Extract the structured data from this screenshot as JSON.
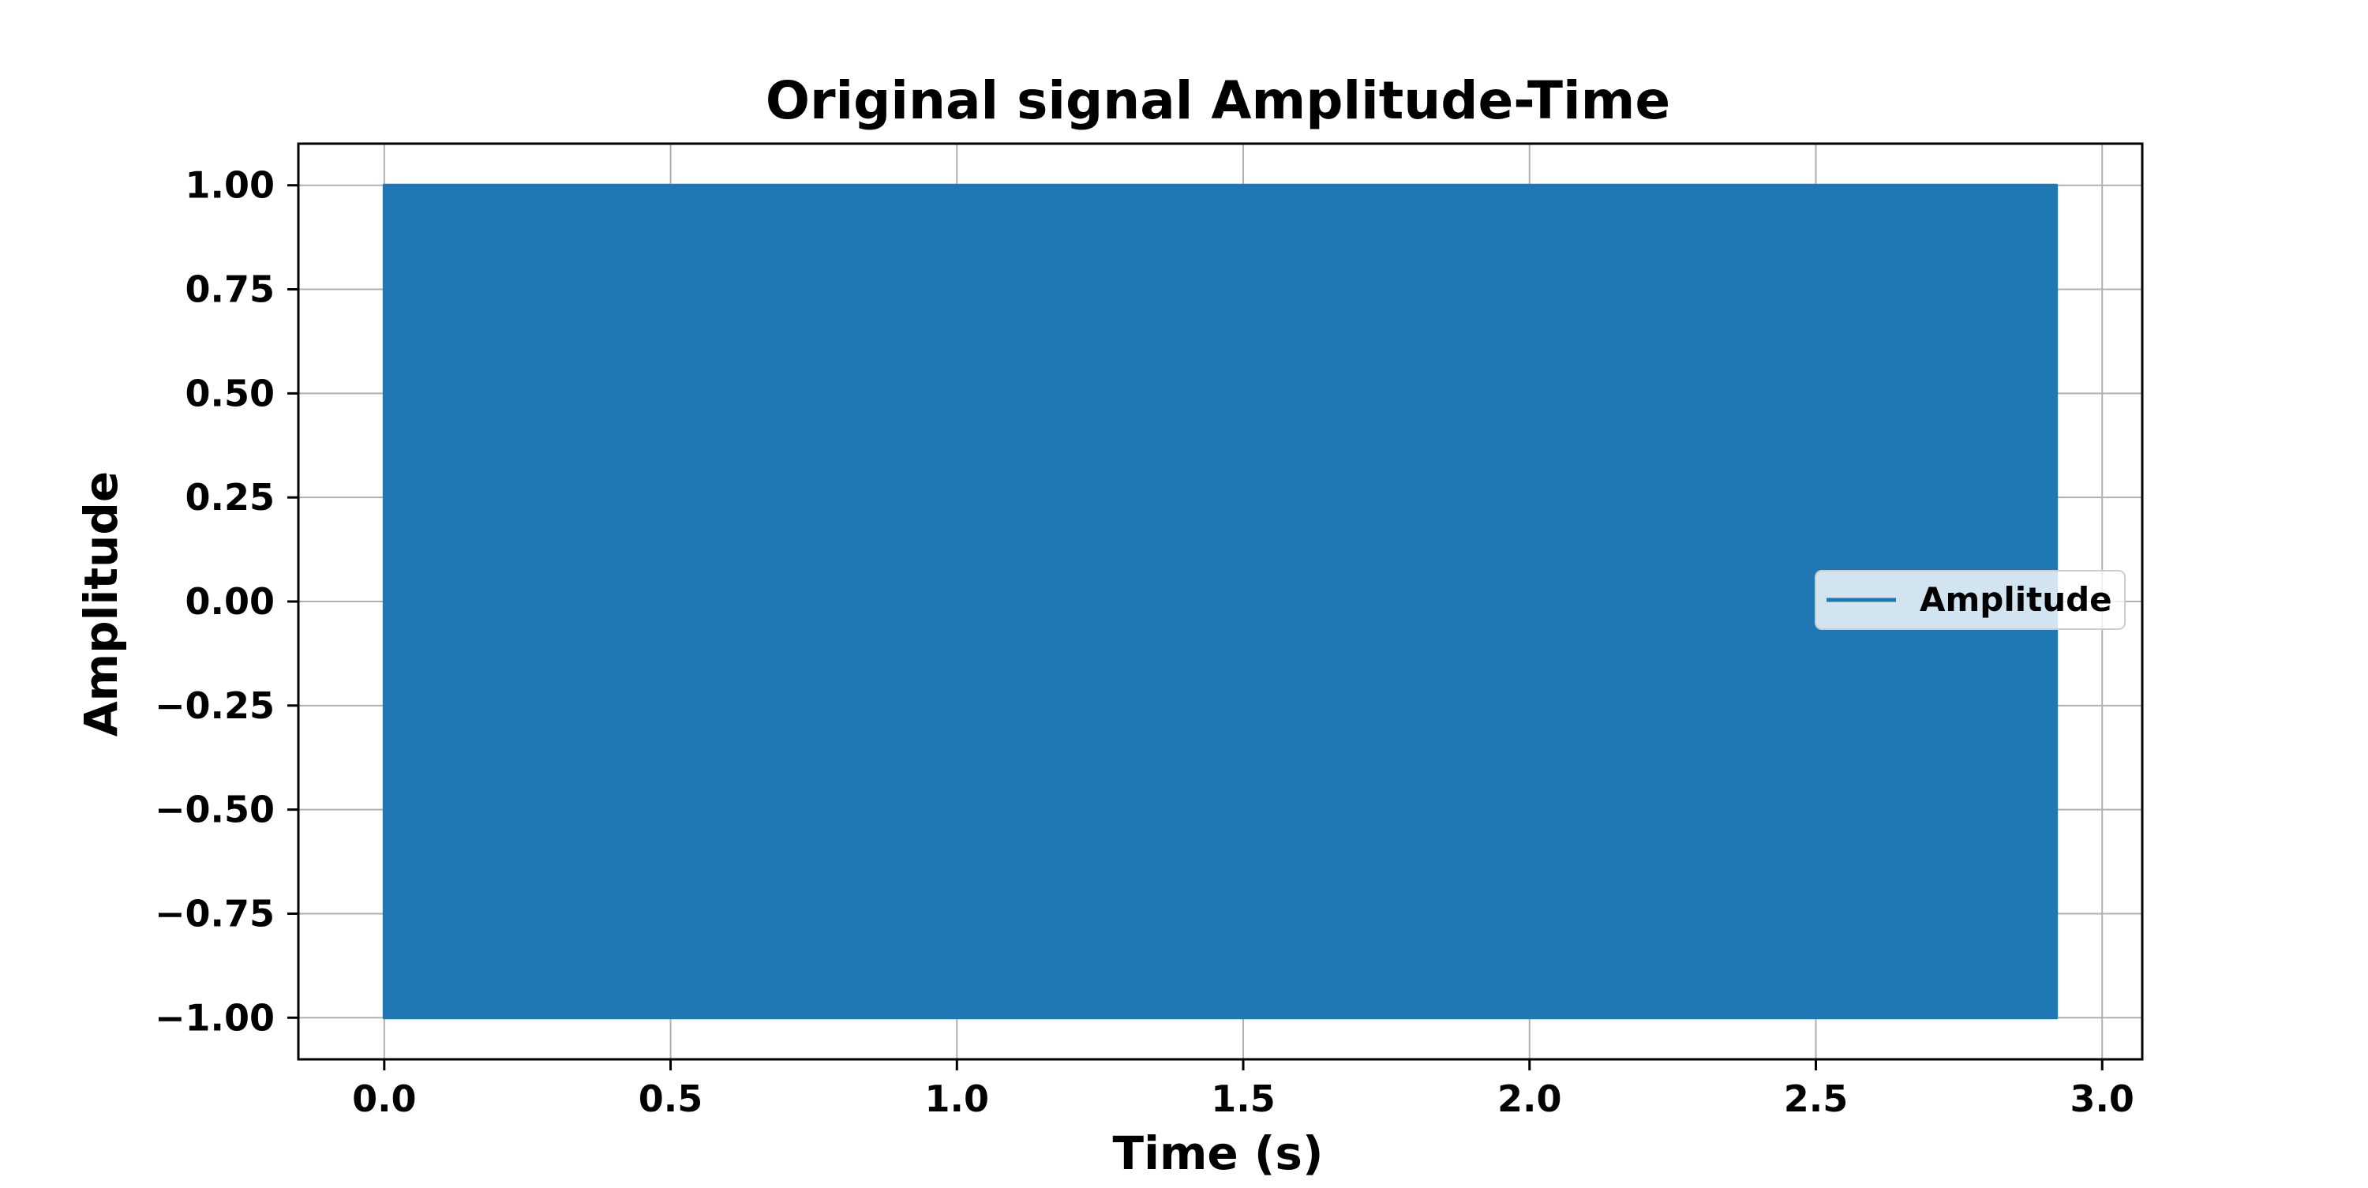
{
  "chart_data": {
    "type": "line",
    "title": "Original signal Amplitude-Time",
    "xlabel": "Time (s)",
    "ylabel": "Amplitude",
    "xlim": [
      -0.15,
      3.07
    ],
    "ylim": [
      -1.1,
      1.1
    ],
    "x_ticks": [
      0.0,
      0.5,
      1.0,
      1.5,
      2.0,
      2.5,
      3.0
    ],
    "x_tick_labels": [
      "0.0",
      "0.5",
      "1.0",
      "1.5",
      "2.0",
      "2.5",
      "3.0"
    ],
    "y_ticks": [
      1.0,
      0.75,
      0.5,
      0.25,
      0.0,
      -0.25,
      -0.5,
      -0.75,
      -1.0
    ],
    "y_tick_labels": [
      "1.00",
      "0.75",
      "0.50",
      "0.25",
      "0.00",
      "−0.25",
      "−0.50",
      "−0.75",
      "−1.00"
    ],
    "grid": true,
    "legend_position": "center-right",
    "series": [
      {
        "name": "Amplitude",
        "color": "#1f77b4",
        "x_start": 0.0,
        "x_end": 2.92,
        "min": -1.0,
        "max": 1.0
      }
    ]
  }
}
